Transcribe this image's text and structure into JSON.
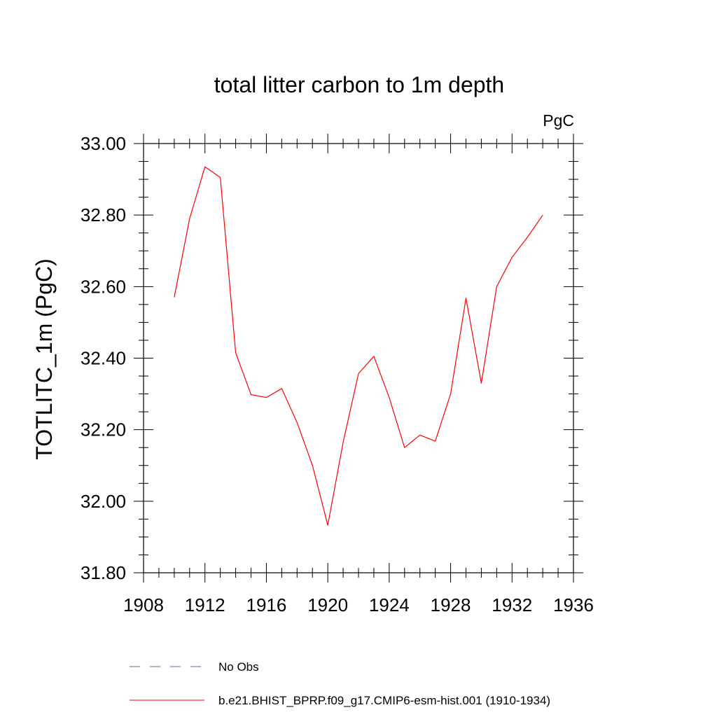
{
  "chart_data": {
    "type": "line",
    "title": "total litter carbon to 1m depth",
    "units_label": "PgC",
    "ylabel": "TOTLITC_1m  (PgC)",
    "xlabel": "",
    "xlim": [
      1908,
      1936
    ],
    "ylim": [
      31.8,
      33.0
    ],
    "x_ticks": [
      1908,
      1912,
      1916,
      1920,
      1924,
      1928,
      1932,
      1936
    ],
    "x_tick_labels": [
      "1908",
      "1912",
      "1916",
      "1920",
      "1924",
      "1928",
      "1932",
      "1936"
    ],
    "y_ticks": [
      31.8,
      32.0,
      32.2,
      32.4,
      32.6,
      32.8,
      33.0
    ],
    "y_tick_labels": [
      "31.80",
      "32.00",
      "32.20",
      "32.40",
      "32.60",
      "32.80",
      "33.00"
    ],
    "x_minor_step": 1,
    "y_minor_step": 0.05,
    "grid": false,
    "series": [
      {
        "name": "b.e21.BHIST_BPRP.f09_g17.CMIP6-esm-hist.001 (1910-1934)",
        "color": "#ff0000",
        "style": "solid",
        "x": [
          1910,
          1911,
          1912,
          1913,
          1914,
          1915,
          1916,
          1917,
          1918,
          1919,
          1920,
          1921,
          1922,
          1923,
          1924,
          1925,
          1926,
          1927,
          1928,
          1929,
          1930,
          1931,
          1932,
          1933,
          1934
        ],
        "values": [
          32.57,
          32.79,
          32.935,
          32.905,
          32.415,
          32.298,
          32.29,
          32.315,
          32.22,
          32.1,
          31.933,
          32.165,
          32.357,
          32.405,
          32.29,
          32.15,
          32.185,
          32.168,
          32.3,
          32.568,
          32.33,
          32.6,
          32.682,
          32.738,
          32.8
        ]
      }
    ],
    "legend": {
      "placement": "bottom",
      "entries": [
        {
          "label": "No Obs",
          "color": "#6b5fa8",
          "style": "dashed"
        },
        {
          "label": "b.e21.BHIST_BPRP.f09_g17.CMIP6-esm-hist.001 (1910-1934)",
          "color": "#ff0000",
          "style": "solid"
        }
      ]
    }
  }
}
